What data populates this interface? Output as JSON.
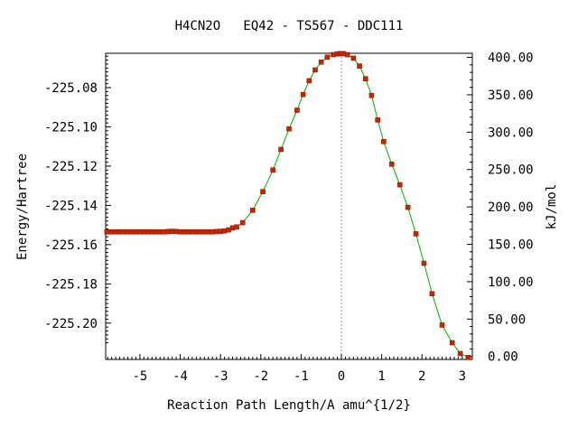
{
  "chart_data": {
    "type": "line",
    "title": "H4CN2O   EQ42 - TS567 - DDC111",
    "xlabel": "Reaction Path Length/A amu^{1/2}",
    "ylabel": "Energy/Hartree",
    "y2label": "kJ/mol",
    "xlim": [
      -5.85,
      3.25
    ],
    "ylim": [
      -225.2185,
      -225.0625
    ],
    "y2lim": [
      -4.0,
      405.5
    ],
    "x_ticks": [
      -5,
      -4,
      -3,
      -2,
      -1,
      0,
      1,
      2,
      3
    ],
    "y_ticks": [
      -225.08,
      -225.1,
      -225.12,
      -225.14,
      -225.16,
      -225.18,
      -225.2
    ],
    "y_tick_labels": [
      "-225.08",
      "-225.10",
      "-225.12",
      "-225.14",
      "-225.16",
      "-225.18",
      "-225.20"
    ],
    "y2_ticks": [
      400,
      350,
      300,
      250,
      200,
      150,
      100,
      50,
      0
    ],
    "y2_tick_labels": [
      "400.00",
      "350.00",
      "300.00",
      "250.00",
      "200.00",
      "150.00",
      "100.00",
      "50.00",
      "0.00"
    ],
    "x_tick_labels": [
      "-5",
      "-4",
      "-3",
      "-2",
      "-1",
      "0",
      "1",
      "2",
      "3"
    ],
    "ts_marker_x": 0.0,
    "grid": false,
    "colors": {
      "line": "#00b000",
      "points": "#cc2200",
      "point_edge": "#882200",
      "ts_line": "#999999",
      "frame": "#000000"
    },
    "series": [
      {
        "x": [
          -5.82,
          -5.7,
          -5.6,
          -5.5,
          -5.4,
          -5.3,
          -5.2,
          -5.1,
          -5.0,
          -4.9,
          -4.8,
          -4.7,
          -4.6,
          -4.5,
          -4.4,
          -4.3,
          -4.2,
          -4.1,
          -4.0,
          -3.9,
          -3.8,
          -3.7,
          -3.6,
          -3.5,
          -3.4,
          -3.3,
          -3.2,
          -3.1,
          -3.0,
          -2.9,
          -2.8,
          -2.7,
          -2.6,
          -2.45,
          -2.2,
          -1.95,
          -1.7,
          -1.5,
          -1.3,
          -1.1,
          -0.95,
          -0.8,
          -0.65,
          -0.5,
          -0.35,
          -0.2,
          -0.1,
          -0.03,
          0.0,
          0.05,
          0.15,
          0.3,
          0.45,
          0.6,
          0.75,
          0.9,
          1.05,
          1.25,
          1.45,
          1.65,
          1.85,
          2.05,
          2.25,
          2.5,
          2.75,
          2.95,
          3.15
        ],
        "y": [
          -225.1535,
          -225.1535,
          -225.1535,
          -225.1535,
          -225.1535,
          -225.1535,
          -225.1535,
          -225.1535,
          -225.1535,
          -225.1535,
          -225.1535,
          -225.1535,
          -225.1535,
          -225.1535,
          -225.1535,
          -225.1533,
          -225.1532,
          -225.1533,
          -225.1535,
          -225.1535,
          -225.1535,
          -225.1535,
          -225.1535,
          -225.1535,
          -225.1535,
          -225.1535,
          -225.1535,
          -225.1533,
          -225.1532,
          -225.153,
          -225.1525,
          -225.1515,
          -225.151,
          -225.1488,
          -225.1425,
          -225.133,
          -225.122,
          -225.1115,
          -225.101,
          -225.0915,
          -225.0835,
          -225.0765,
          -225.071,
          -225.067,
          -225.0645,
          -225.0632,
          -225.0628,
          -225.0627,
          -225.0627,
          -225.0627,
          -225.0632,
          -225.065,
          -225.069,
          -225.0755,
          -225.084,
          -225.0965,
          -225.1075,
          -225.119,
          -225.1295,
          -225.141,
          -225.1545,
          -225.1695,
          -225.185,
          -225.201,
          -225.21,
          -225.2155,
          -225.2175
        ]
      }
    ]
  }
}
